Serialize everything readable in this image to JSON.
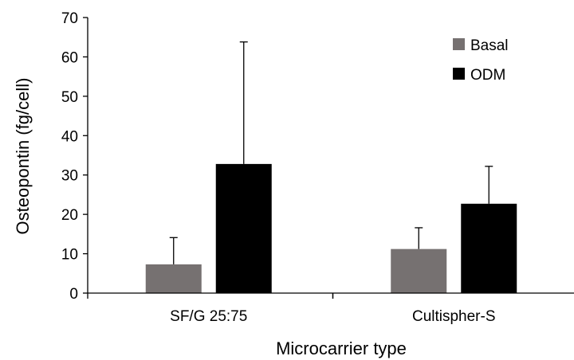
{
  "chart_data": {
    "type": "bar",
    "categories": [
      "SF/G 25:75",
      "Cultispher-S"
    ],
    "series": [
      {
        "name": "Basal",
        "color": "#767171",
        "values": [
          7.3,
          11.2
        ],
        "error": [
          6.8,
          5.4
        ]
      },
      {
        "name": "ODM",
        "color": "#000000",
        "values": [
          32.8,
          22.7
        ],
        "error": [
          31.0,
          9.5
        ]
      }
    ],
    "xlabel": "Microcarrier type",
    "ylabel": "Osteopontin  (fg/cell)",
    "ylim": [
      0,
      70
    ],
    "yticks": [
      0,
      10,
      20,
      30,
      40,
      50,
      60,
      70
    ],
    "grid": false,
    "error_bars": "upper",
    "legend_position": "top-right"
  }
}
